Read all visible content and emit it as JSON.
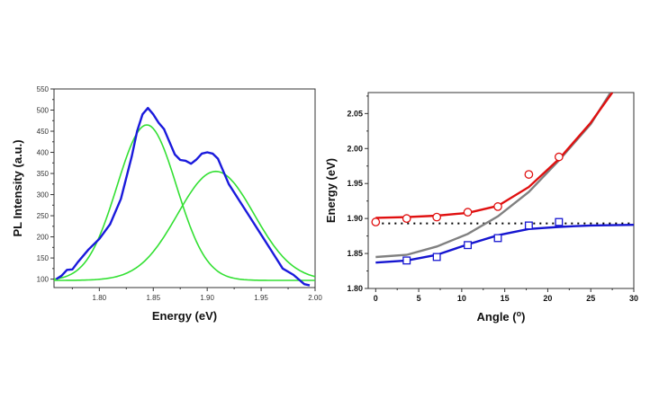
{
  "chart_data": [
    {
      "type": "line",
      "xlabel": "Energy (eV)",
      "ylabel": "PL Intensity (a.u.)",
      "xlim": [
        1.758,
        2.0
      ],
      "ylim": [
        80,
        550
      ],
      "xticks": [
        "1.80",
        "1.85",
        "1.90",
        "1.95",
        "2.00"
      ],
      "yticks": [
        "100",
        "150",
        "200",
        "250",
        "300",
        "350",
        "400",
        "450",
        "500",
        "550"
      ],
      "grid": false,
      "colors": {
        "measured": "#1a1adc",
        "fit": "#33e033"
      },
      "measured": {
        "x": [
          1.76,
          1.765,
          1.77,
          1.775,
          1.78,
          1.79,
          1.8,
          1.81,
          1.82,
          1.83,
          1.835,
          1.84,
          1.845,
          1.85,
          1.855,
          1.86,
          1.865,
          1.87,
          1.875,
          1.88,
          1.885,
          1.89,
          1.895,
          1.9,
          1.905,
          1.91,
          1.915,
          1.92,
          1.93,
          1.94,
          1.95,
          1.96,
          1.97,
          1.98,
          1.99,
          1.995
        ],
        "y": [
          100,
          108,
          122,
          123,
          140,
          170,
          195,
          230,
          290,
          390,
          450,
          490,
          505,
          490,
          470,
          455,
          425,
          395,
          382,
          380,
          373,
          383,
          397,
          400,
          397,
          385,
          355,
          325,
          285,
          245,
          205,
          165,
          125,
          110,
          88,
          85
        ]
      },
      "fit_peaks": [
        {
          "center": 1.844,
          "amplitude": 368,
          "sigma": 0.0276,
          "baseline": 97
        },
        {
          "center": 1.908,
          "amplitude": 258,
          "sigma": 0.0355,
          "baseline": 97
        }
      ]
    },
    {
      "type": "scatter",
      "xlabel": "Angle (",
      "xlabel_sup": "o",
      "xlabel_end": ")",
      "ylabel": "Energy (eV)",
      "xlim": [
        -0.87,
        30
      ],
      "ylim": [
        1.8,
        2.08
      ],
      "xticks": [
        "0",
        "5",
        "10",
        "15",
        "20",
        "25",
        "30"
      ],
      "yticks": [
        "1.80",
        "1.85",
        "1.90",
        "1.95",
        "2.00",
        "2.05"
      ],
      "grid": false,
      "upper_points": {
        "color": "#e01010",
        "marker": "circle",
        "x": [
          0,
          3.6,
          7.1,
          10.7,
          14.2,
          17.8,
          21.3
        ],
        "y": [
          1.895,
          1.9,
          1.902,
          1.909,
          1.917,
          1.963,
          1.988
        ]
      },
      "lower_points": {
        "color": "#1515d0",
        "marker": "square",
        "x": [
          3.6,
          7.1,
          10.7,
          14.2,
          17.8,
          21.3
        ],
        "y": [
          1.84,
          1.845,
          1.862,
          1.872,
          1.89,
          1.895
        ]
      },
      "upper_curve": {
        "color": "#e01010",
        "x": [
          0,
          3.6,
          7.1,
          10.7,
          14.2,
          17.8,
          21.3,
          25,
          27.5
        ],
        "y": [
          1.901,
          1.902,
          1.904,
          1.908,
          1.918,
          1.945,
          1.985,
          2.037,
          2.08
        ]
      },
      "cavity_curve": {
        "color": "#808080",
        "x": [
          0,
          3.6,
          7.1,
          10.7,
          14.2,
          17.8,
          21.3,
          25,
          27.3
        ],
        "y": [
          1.845,
          1.848,
          1.86,
          1.878,
          1.903,
          1.938,
          1.983,
          2.035,
          2.08
        ]
      },
      "lower_curve": {
        "color": "#1515d0",
        "x": [
          0,
          3.6,
          7.1,
          10.7,
          14.2,
          17.8,
          21.3,
          25,
          30
        ],
        "y": [
          1.837,
          1.84,
          1.848,
          1.863,
          1.876,
          1.885,
          1.888,
          1.89,
          1.891
        ]
      },
      "exciton_line": {
        "color": "#000000",
        "style": "dotted",
        "y": 1.893
      }
    }
  ]
}
